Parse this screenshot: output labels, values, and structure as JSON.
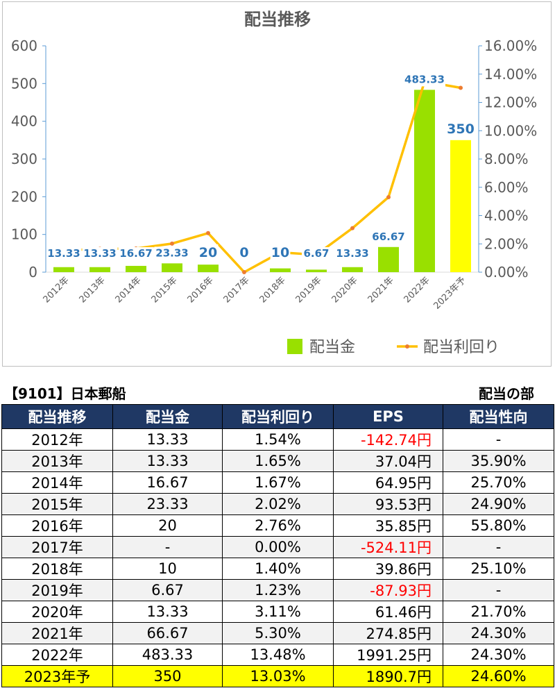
{
  "chart_data": {
    "type": "bar+line",
    "title": "配当推移",
    "categories": [
      "2012年",
      "2013年",
      "2014年",
      "2015年",
      "2016年",
      "2017年",
      "2018年",
      "2019年",
      "2020年",
      "2021年",
      "2022年",
      "2023年予"
    ],
    "series": [
      {
        "name": "配当金",
        "type": "bar",
        "axis": "left",
        "color": "#99e000",
        "values": [
          13.33,
          13.33,
          16.67,
          23.33,
          20,
          0,
          10,
          6.67,
          13.33,
          66.67,
          483.33,
          350
        ],
        "labels": [
          "13.33",
          "13.33",
          "16.67",
          "23.33",
          "20",
          "0",
          "10",
          "6.67",
          "13.33",
          "66.67",
          "483.33",
          "350"
        ],
        "highlight_last_color": "#ffff00"
      },
      {
        "name": "配当利回り",
        "type": "line",
        "axis": "right",
        "color": "#ffc000",
        "values": [
          1.54,
          1.65,
          1.67,
          2.02,
          2.76,
          0.0,
          1.4,
          1.23,
          3.11,
          5.3,
          13.48,
          13.03
        ]
      }
    ],
    "left_axis": {
      "min": 0,
      "max": 600,
      "ticks": [
        "0",
        "100",
        "200",
        "300",
        "400",
        "500",
        "600"
      ]
    },
    "right_axis": {
      "min": 0,
      "max": 16,
      "ticks": [
        "0.00%",
        "2.00%",
        "4.00%",
        "6.00%",
        "8.00%",
        "10.00%",
        "12.00%",
        "14.00%",
        "16.00%"
      ]
    },
    "legend_position": "bottom-right",
    "grid": false
  },
  "table": {
    "company": "【9101】日本郵船",
    "section": "配当の部",
    "headers": [
      "配当推移",
      "配当金",
      "配当利回り",
      "EPS",
      "配当性向"
    ],
    "rows": [
      {
        "year": "2012年",
        "dividend": "13.33",
        "yield": "1.54%",
        "eps": "-142.74円",
        "payout": "-",
        "neg": true
      },
      {
        "year": "2013年",
        "dividend": "13.33",
        "yield": "1.65%",
        "eps": "37.04円",
        "payout": "35.90%",
        "neg": false
      },
      {
        "year": "2014年",
        "dividend": "16.67",
        "yield": "1.67%",
        "eps": "64.95円",
        "payout": "25.70%",
        "neg": false
      },
      {
        "year": "2015年",
        "dividend": "23.33",
        "yield": "2.02%",
        "eps": "93.53円",
        "payout": "24.90%",
        "neg": false
      },
      {
        "year": "2016年",
        "dividend": "20",
        "yield": "2.76%",
        "eps": "35.85円",
        "payout": "55.80%",
        "neg": false
      },
      {
        "year": "2017年",
        "dividend": "-",
        "yield": "0.00%",
        "eps": "-524.11円",
        "payout": "-",
        "neg": true
      },
      {
        "year": "2018年",
        "dividend": "10",
        "yield": "1.40%",
        "eps": "39.86円",
        "payout": "25.10%",
        "neg": false
      },
      {
        "year": "2019年",
        "dividend": "6.67",
        "yield": "1.23%",
        "eps": "-87.93円",
        "payout": "-",
        "neg": true
      },
      {
        "year": "2020年",
        "dividend": "13.33",
        "yield": "3.11%",
        "eps": "61.46円",
        "payout": "21.70%",
        "neg": false
      },
      {
        "year": "2021年",
        "dividend": "66.67",
        "yield": "5.30%",
        "eps": "274.85円",
        "payout": "24.30%",
        "neg": false
      },
      {
        "year": "2022年",
        "dividend": "483.33",
        "yield": "13.48%",
        "eps": "1991.25円",
        "payout": "24.30%",
        "neg": false
      },
      {
        "year": "2023年予",
        "dividend": "350",
        "yield": "13.03%",
        "eps": "1890.7円",
        "payout": "24.60%",
        "neg": false,
        "highlight": true
      }
    ]
  },
  "colors": {
    "header_bg": "#1f3864",
    "highlight_row": "#ffff00",
    "negative": "#ff0000",
    "bar_label": "#2e75b6",
    "axis_blue": "#5b9bd5"
  }
}
